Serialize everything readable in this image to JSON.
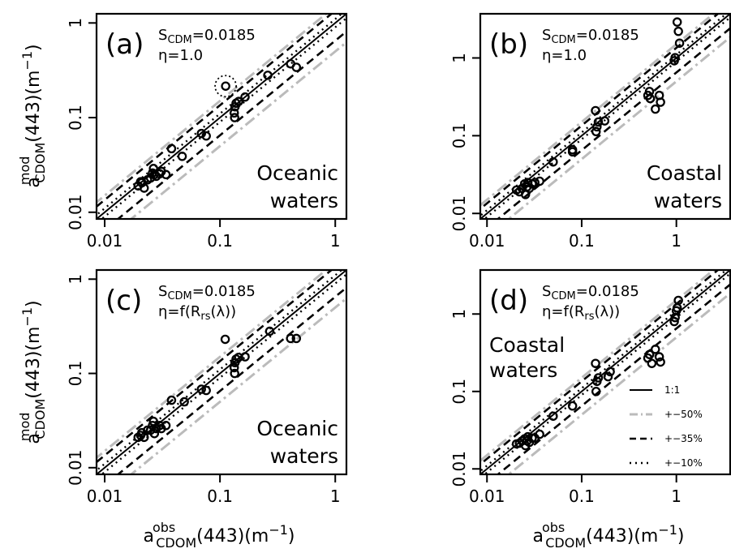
{
  "y_axis_title": {
    "base": "a",
    "sup": "mod",
    "sub": "CDOM",
    "rest": "(443)(m",
    "exp": "−1",
    "close": ")"
  },
  "x_axis_title": {
    "base": "a",
    "sup": "obs",
    "sub": "CDOM",
    "rest": "(443)(m",
    "exp": "−1",
    "close": ")"
  },
  "legend": {
    "entries": [
      {
        "label": "1:1",
        "style": "solid",
        "color": "#000000"
      },
      {
        "label": "+−50%",
        "style": "dashdot",
        "color": "#bbbbbb"
      },
      {
        "label": "+−35%",
        "style": "dashed",
        "color": "#000000"
      },
      {
        "label": "+−10%",
        "style": "dotted",
        "color": "#000000"
      }
    ]
  },
  "chart_data": [
    {
      "type": "scatter",
      "panel": "(a)",
      "s_cdm": "=0.0185",
      "eta": "η=1.0",
      "eta_sub": "",
      "eta_close": "",
      "water_lines": [
        "Oceanic",
        "waters"
      ],
      "water_pos": "bottom-right",
      "xscale": "log",
      "yscale": "log",
      "xlim": [
        0.0085,
        1.25
      ],
      "ylim": [
        0.0085,
        1.25
      ],
      "xticks": [
        0.01,
        0.1,
        1
      ],
      "yticks": [
        0.01,
        0.1,
        1
      ],
      "xtick_labels": [
        "0.01",
        "0.1",
        "1"
      ],
      "ytick_labels": [
        "0.01",
        "0.1",
        "1"
      ],
      "highlighted_point": [
        0.112,
        0.215
      ],
      "points": [
        [
          0.0195,
          0.019
        ],
        [
          0.0205,
          0.021
        ],
        [
          0.021,
          0.0205
        ],
        [
          0.022,
          0.018
        ],
        [
          0.0235,
          0.022
        ],
        [
          0.025,
          0.023
        ],
        [
          0.026,
          0.026
        ],
        [
          0.0265,
          0.029
        ],
        [
          0.027,
          0.025
        ],
        [
          0.028,
          0.024
        ],
        [
          0.03,
          0.0255
        ],
        [
          0.031,
          0.027
        ],
        [
          0.034,
          0.025
        ],
        [
          0.038,
          0.047
        ],
        [
          0.047,
          0.039
        ],
        [
          0.069,
          0.068
        ],
        [
          0.076,
          0.064
        ],
        [
          0.112,
          0.215
        ],
        [
          0.133,
          0.112
        ],
        [
          0.134,
          0.1
        ],
        [
          0.135,
          0.13
        ],
        [
          0.138,
          0.142
        ],
        [
          0.145,
          0.148
        ],
        [
          0.165,
          0.165
        ],
        [
          0.26,
          0.28
        ],
        [
          0.41,
          0.37
        ],
        [
          0.46,
          0.34
        ]
      ]
    },
    {
      "type": "scatter",
      "panel": "(b)",
      "s_cdm": "=0.0185",
      "eta": "η=1.0",
      "eta_sub": "",
      "eta_close": "",
      "water_lines": [
        "Coastal",
        "waters"
      ],
      "water_pos": "bottom-right",
      "xscale": "log",
      "yscale": "log",
      "xlim": [
        0.0085,
        3.7
      ],
      "ylim": [
        0.0085,
        3.7
      ],
      "xticks": [
        0.01,
        0.1,
        1
      ],
      "yticks": [
        0.01,
        0.1,
        1
      ],
      "xtick_labels": [
        "0.01",
        "0.1",
        "1"
      ],
      "ytick_labels": [
        "0.01",
        "0.1",
        "1"
      ],
      "points": [
        [
          0.0205,
          0.02
        ],
        [
          0.022,
          0.019
        ],
        [
          0.0235,
          0.021
        ],
        [
          0.025,
          0.024
        ],
        [
          0.0255,
          0.0175
        ],
        [
          0.0265,
          0.022
        ],
        [
          0.027,
          0.025
        ],
        [
          0.028,
          0.021
        ],
        [
          0.03,
          0.024
        ],
        [
          0.032,
          0.025
        ],
        [
          0.036,
          0.026
        ],
        [
          0.05,
          0.046
        ],
        [
          0.08,
          0.066
        ],
        [
          0.08,
          0.062
        ],
        [
          0.14,
          0.21
        ],
        [
          0.142,
          0.113
        ],
        [
          0.145,
          0.13
        ],
        [
          0.15,
          0.15
        ],
        [
          0.175,
          0.155
        ],
        [
          0.5,
          0.33
        ],
        [
          0.52,
          0.37
        ],
        [
          0.53,
          0.3
        ],
        [
          0.6,
          0.22
        ],
        [
          0.66,
          0.33
        ],
        [
          0.68,
          0.27
        ],
        [
          0.95,
          0.92
        ],
        [
          0.97,
          1.01
        ],
        [
          1.02,
          2.9
        ],
        [
          1.05,
          2.2
        ],
        [
          1.08,
          1.55
        ]
      ]
    },
    {
      "type": "scatter",
      "panel": "(c)",
      "s_cdm": "=0.0185",
      "eta": "η=f(R",
      "eta_sub": "rs",
      "eta_close": "(λ))",
      "water_lines": [
        "Oceanic",
        "waters"
      ],
      "water_pos": "bottom-right",
      "xscale": "log",
      "yscale": "log",
      "xlim": [
        0.0085,
        1.25
      ],
      "ylim": [
        0.0085,
        1.25
      ],
      "xticks": [
        0.01,
        0.1,
        1
      ],
      "yticks": [
        0.01,
        0.1,
        1
      ],
      "xtick_labels": [
        "0.01",
        "0.1",
        "1"
      ],
      "ytick_labels": [
        "0.01",
        "0.1",
        "1"
      ],
      "points": [
        [
          0.0195,
          0.021
        ],
        [
          0.0205,
          0.022
        ],
        [
          0.021,
          0.0235
        ],
        [
          0.022,
          0.021
        ],
        [
          0.0235,
          0.025
        ],
        [
          0.025,
          0.025
        ],
        [
          0.026,
          0.028
        ],
        [
          0.0265,
          0.031
        ],
        [
          0.027,
          0.023
        ],
        [
          0.028,
          0.026
        ],
        [
          0.03,
          0.028
        ],
        [
          0.031,
          0.026
        ],
        [
          0.034,
          0.028
        ],
        [
          0.038,
          0.052
        ],
        [
          0.049,
          0.05
        ],
        [
          0.069,
          0.068
        ],
        [
          0.076,
          0.066
        ],
        [
          0.111,
          0.23
        ],
        [
          0.133,
          0.115
        ],
        [
          0.134,
          0.1
        ],
        [
          0.135,
          0.13
        ],
        [
          0.138,
          0.142
        ],
        [
          0.145,
          0.148
        ],
        [
          0.165,
          0.15
        ],
        [
          0.27,
          0.28
        ],
        [
          0.41,
          0.235
        ],
        [
          0.46,
          0.235
        ]
      ]
    },
    {
      "type": "scatter",
      "panel": "(d)",
      "s_cdm": "=0.0185",
      "eta": "η=f(R",
      "eta_sub": "rs",
      "eta_close": "(λ))",
      "water_lines": [
        "Coastal",
        "waters"
      ],
      "water_pos": "top-left",
      "xscale": "log",
      "yscale": "log",
      "xlim": [
        0.0085,
        3.7
      ],
      "ylim": [
        0.0085,
        3.7
      ],
      "xticks": [
        0.01,
        0.1,
        1
      ],
      "yticks": [
        0.01,
        0.1,
        1
      ],
      "xtick_labels": [
        "0.01",
        "0.1",
        "1"
      ],
      "ytick_labels": [
        "0.01",
        "0.1",
        "1"
      ],
      "points": [
        [
          0.0205,
          0.021
        ],
        [
          0.022,
          0.0215
        ],
        [
          0.0235,
          0.023
        ],
        [
          0.025,
          0.0245
        ],
        [
          0.0255,
          0.02
        ],
        [
          0.0265,
          0.023
        ],
        [
          0.027,
          0.026
        ],
        [
          0.028,
          0.022
        ],
        [
          0.03,
          0.025
        ],
        [
          0.032,
          0.025
        ],
        [
          0.036,
          0.028
        ],
        [
          0.05,
          0.048
        ],
        [
          0.08,
          0.065
        ],
        [
          0.14,
          0.23
        ],
        [
          0.142,
          0.1
        ],
        [
          0.145,
          0.135
        ],
        [
          0.15,
          0.15
        ],
        [
          0.19,
          0.155
        ],
        [
          0.2,
          0.18
        ],
        [
          0.5,
          0.27
        ],
        [
          0.52,
          0.3
        ],
        [
          0.55,
          0.23
        ],
        [
          0.6,
          0.35
        ],
        [
          0.66,
          0.28
        ],
        [
          0.68,
          0.24
        ],
        [
          0.95,
          0.8
        ],
        [
          0.97,
          0.9
        ],
        [
          1.0,
          1.1
        ],
        [
          1.02,
          1.2
        ],
        [
          1.05,
          1.5
        ]
      ]
    }
  ]
}
